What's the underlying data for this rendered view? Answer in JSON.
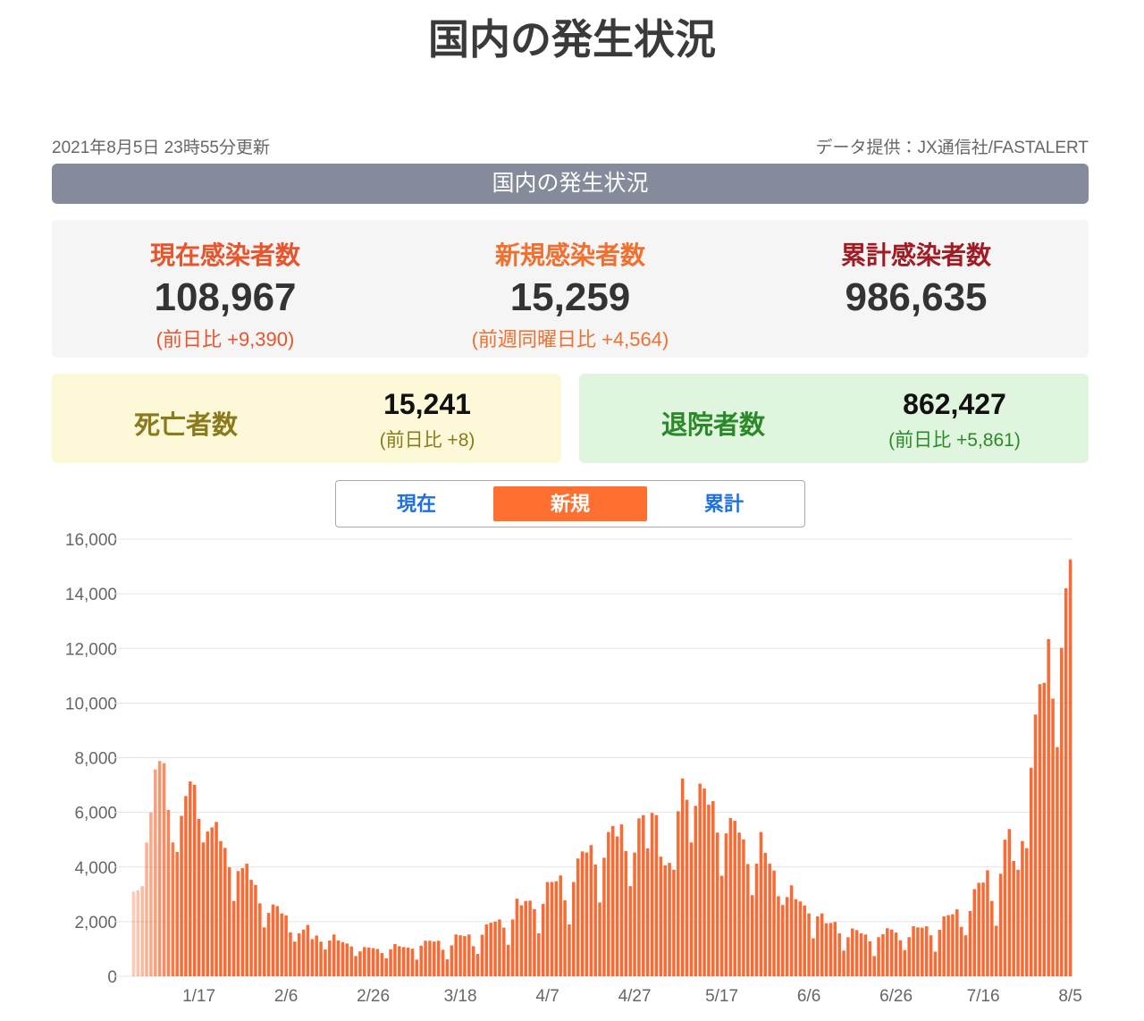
{
  "header": {
    "title": "国内の発生状況",
    "updated": "2021年8月5日 23時55分更新",
    "source": "データ提供：JX通信社/FASTALERT",
    "section": "国内の発生状況"
  },
  "stats": {
    "current": {
      "label": "現在感染者数",
      "value": "108,967",
      "diff": "(前日比 +9,390)"
    },
    "new": {
      "label": "新規感染者数",
      "value": "15,259",
      "diff": "(前週同曜日比 +4,564)"
    },
    "total": {
      "label": "累計感染者数",
      "value": "986,635"
    },
    "deaths": {
      "label": "死亡者数",
      "value": "15,241",
      "diff": "(前日比 +8)"
    },
    "recovered": {
      "label": "退院者数",
      "value": "862,427",
      "diff": "(前日比 +5,861)"
    }
  },
  "tabs": {
    "items": [
      "現在",
      "新規",
      "累計"
    ],
    "active": 1
  },
  "chart_data": {
    "type": "bar",
    "color": "#fa6a32",
    "grid": true,
    "categories": [
      null,
      null,
      null,
      null,
      null,
      null,
      null,
      null,
      null,
      null,
      null,
      null,
      null,
      null,
      null,
      "1/17",
      null,
      null,
      null,
      null,
      null,
      null,
      null,
      null,
      null,
      null,
      null,
      null,
      null,
      null,
      null,
      null,
      null,
      null,
      null,
      "2/6",
      null,
      null,
      null,
      null,
      null,
      null,
      null,
      null,
      null,
      null,
      null,
      null,
      null,
      null,
      null,
      null,
      null,
      null,
      null,
      "2/26",
      null,
      null,
      null,
      null,
      null,
      null,
      null,
      null,
      null,
      null,
      null,
      null,
      null,
      null,
      null,
      null,
      null,
      null,
      null,
      "3/18",
      null,
      null,
      null,
      null,
      null,
      null,
      null,
      null,
      null,
      null,
      null,
      null,
      null,
      null,
      null,
      null,
      null,
      null,
      null,
      "4/7",
      null,
      null,
      null,
      null,
      null,
      null,
      null,
      null,
      null,
      null,
      null,
      null,
      null,
      null,
      null,
      null,
      null,
      null,
      null,
      "4/27",
      null,
      null,
      null,
      null,
      null,
      null,
      null,
      null,
      null,
      null,
      null,
      null,
      null,
      null,
      null,
      null,
      null,
      null,
      null,
      "5/17",
      null,
      null,
      null,
      null,
      null,
      null,
      null,
      null,
      null,
      null,
      null,
      null,
      null,
      null,
      null,
      null,
      null,
      null,
      null,
      "6/6",
      null,
      null,
      null,
      null,
      null,
      null,
      null,
      null,
      null,
      null,
      null,
      null,
      null,
      null,
      null,
      null,
      null,
      null,
      null,
      "6/26",
      null,
      null,
      null,
      null,
      null,
      null,
      null,
      null,
      null,
      null,
      null,
      null,
      null,
      null,
      null,
      null,
      null,
      null,
      null,
      "7/16",
      null,
      null,
      null,
      null,
      null,
      null,
      null,
      null,
      null,
      null,
      null,
      null,
      null,
      null,
      null,
      null,
      null,
      null,
      null,
      "8/5"
    ],
    "values": [
      3100,
      3150,
      3300,
      4900,
      6000,
      7570,
      7880,
      7800,
      6090,
      4900,
      4550,
      5870,
      6600,
      7130,
      7010,
      5760,
      4900,
      5300,
      5450,
      5650,
      4950,
      4700,
      3990,
      2760,
      3850,
      3960,
      4120,
      3530,
      3340,
      2670,
      1790,
      2320,
      2630,
      2570,
      2300,
      2230,
      1610,
      1270,
      1570,
      1710,
      1880,
      1360,
      1490,
      1270,
      980,
      1310,
      1530,
      1310,
      1250,
      1200,
      1090,
      740,
      910,
      1070,
      1050,
      1030,
      1000,
      850,
      660,
      990,
      1180,
      1100,
      1070,
      1050,
      1010,
      610,
      1120,
      1300,
      1300,
      1270,
      1300,
      970,
      620,
      1130,
      1530,
      1500,
      1470,
      1530,
      1100,
      820,
      1520,
      1900,
      1960,
      2000,
      2080,
      1780,
      1150,
      2080,
      2840,
      2600,
      2760,
      2770,
      2460,
      1570,
      2650,
      3450,
      3450,
      3480,
      3690,
      2780,
      1900,
      3450,
      4310,
      4570,
      4530,
      4800,
      4090,
      2700,
      4340,
      5280,
      5500,
      5120,
      5560,
      4580,
      3300,
      4530,
      5780,
      5900,
      4680,
      5980,
      5900,
      4380,
      4060,
      4150,
      3900,
      6040,
      7240,
      6460,
      4900,
      6240,
      7050,
      6870,
      6280,
      6410,
      5260,
      3680,
      5230,
      5790,
      5690,
      5260,
      5010,
      4110,
      2970,
      4120,
      5280,
      4520,
      4120,
      3870,
      2930,
      2610,
      2900,
      3330,
      2820,
      2740,
      2590,
      2300,
      1390,
      2190,
      2300,
      1940,
      1950,
      1990,
      1570,
      940,
      1430,
      1750,
      1690,
      1570,
      1530,
      1280,
      740,
      1430,
      1540,
      1760,
      1710,
      1600,
      1320,
      960,
      1430,
      1830,
      1790,
      1780,
      1830,
      1500,
      900,
      1700,
      2190,
      2240,
      2270,
      2450,
      1810,
      1500,
      2390,
      3190,
      3420,
      3430,
      3880,
      2760,
      1850,
      3750,
      5000,
      5390,
      4220,
      3900,
      4950,
      4690,
      7630,
      9580,
      10690,
      10740,
      12340,
      10160,
      8390,
      12020,
      14200,
      15259
    ],
    "ylim": [
      0,
      16000
    ],
    "yticks": [
      0,
      {
        "value": 2000,
        "label": "2,000"
      },
      {
        "value": 4000,
        "label": "4,000"
      },
      {
        "value": 6000,
        "label": "6,000"
      },
      {
        "value": 8000,
        "label": "8,000"
      },
      {
        "value": 10000,
        "label": "10,000"
      },
      {
        "value": 12000,
        "label": "12,000"
      },
      {
        "value": 14000,
        "label": "14,000"
      },
      {
        "value": 16000,
        "label": "16,000"
      }
    ]
  }
}
